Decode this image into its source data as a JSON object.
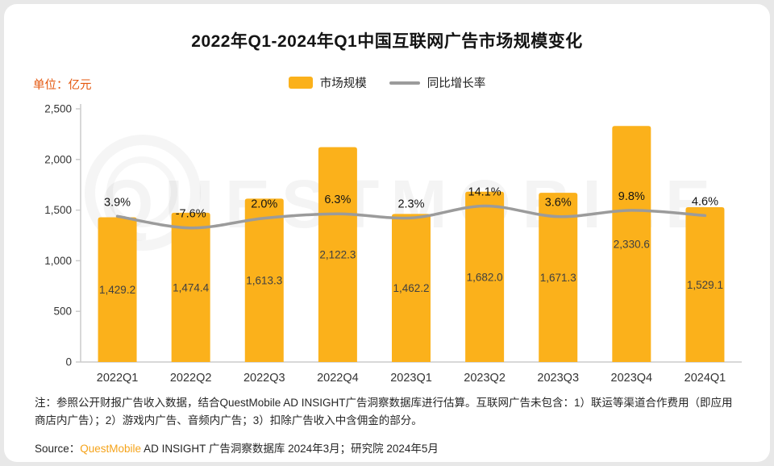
{
  "page": {
    "title": "2022年Q1-2024年Q1中国互联网广告市场规模变化",
    "unit_label": "单位：亿元",
    "legend": {
      "bar_label": "市场规模",
      "line_label": "同比增长率"
    },
    "note": "注：参照公开财报广告收入数据，结合QuestMobile AD INSIGHT广告洞察数据库进行估算。互联网广告未包含：1）联运等渠道合作费用（即应用商店内广告）；2）游戏内广告、音频内广告；3）扣除广告收入中含佣金的部分。",
    "source_prefix": "Source：",
    "source_brand": "QuestMobile",
    "source_rest": " AD INSIGHT 广告洞察数据库 2024年3月；研究院 2024年5月",
    "watermark_text": "QUESTMOBILE"
  },
  "colors": {
    "bar": "#fbb11b",
    "line": "#9b9b9b",
    "unit_label": "#e4570e",
    "brand": "#f5a31a",
    "axis": "#cccccc",
    "axis_text": "#333333",
    "bar_value_label": "#404040",
    "pct_label": "#141414"
  },
  "chart_data": {
    "type": "bar",
    "title": "2022年Q1-2024年Q1中国互联网广告市场规模变化",
    "unit": "亿元",
    "categories": [
      "2022Q1",
      "2022Q2",
      "2022Q3",
      "2022Q4",
      "2023Q1",
      "2023Q2",
      "2023Q3",
      "2023Q4",
      "2024Q1"
    ],
    "series": [
      {
        "name": "市场规模",
        "type": "bar",
        "values": [
          1429.2,
          1474.4,
          1613.3,
          2122.3,
          1462.2,
          1682.0,
          1671.3,
          2330.6,
          1529.1
        ],
        "labels": [
          "1,429.2",
          "1,474.4",
          "1,613.3",
          "2,122.3",
          "1,462.2",
          "1,682.0",
          "1,671.3",
          "2,330.6",
          "1,529.1"
        ]
      },
      {
        "name": "同比增长率",
        "type": "line",
        "values": [
          3.9,
          -7.6,
          2.0,
          6.3,
          2.3,
          14.1,
          3.6,
          9.8,
          4.6
        ],
        "labels": [
          "3.9%",
          "-7.6%",
          "2.0%",
          "6.3%",
          "2.3%",
          "14.1%",
          "3.6%",
          "9.8%",
          "4.6%"
        ]
      }
    ],
    "y_axis": {
      "min": 0,
      "max": 2500,
      "ticks": [
        0,
        500,
        1000,
        1500,
        2000,
        2500
      ],
      "tick_labels": [
        "0",
        "500",
        "1,000",
        "1,500",
        "2,000",
        "2,500"
      ]
    },
    "legend_position": "top-center",
    "grid": false,
    "line_overlay_mapping": {
      "base_value": 1400,
      "per_percent": 10
    }
  }
}
